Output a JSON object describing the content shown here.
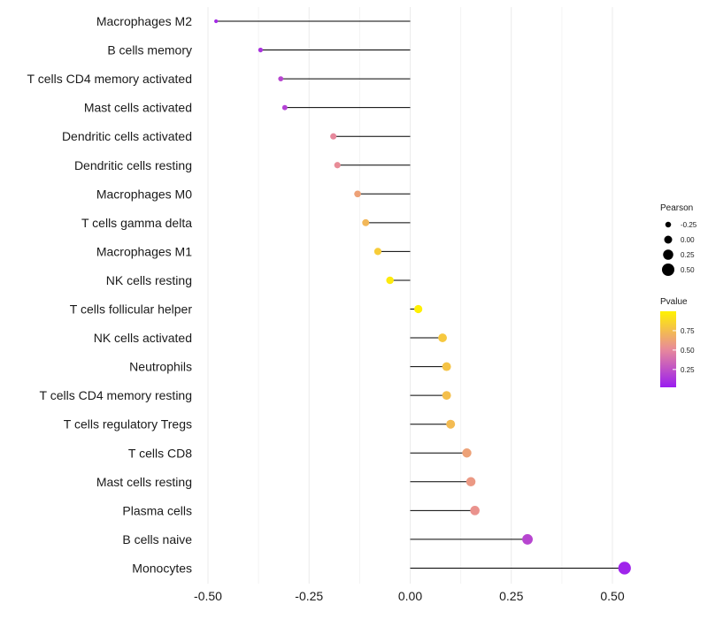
{
  "chart_data": {
    "type": "lollipop",
    "xlim": [
      -0.5,
      0.5
    ],
    "x_ticks": [
      -0.5,
      -0.25,
      0.0,
      0.25,
      0.5
    ],
    "x_tick_labels": [
      "-0.50",
      "-0.25",
      "0.00",
      "0.25",
      "0.50"
    ],
    "grid": "vertical",
    "categories": [
      "Macrophages M2",
      "B cells memory",
      "T cells CD4 memory activated",
      "Mast cells activated",
      "Dendritic cells activated",
      "Dendritic cells resting",
      "Macrophages M0",
      "T cells gamma delta",
      "Macrophages M1",
      "NK cells resting",
      "T cells follicular helper",
      "NK cells activated",
      "Neutrophils",
      "T cells CD4 memory resting",
      "T cells regulatory  Tregs",
      "T cells CD8",
      "Mast cells resting",
      "Plasma cells",
      "B cells naive",
      "Monocytes"
    ],
    "pearson": [
      -0.48,
      -0.37,
      -0.32,
      -0.31,
      -0.19,
      -0.18,
      -0.13,
      -0.11,
      -0.08,
      -0.05,
      0.02,
      0.08,
      0.09,
      0.09,
      0.1,
      0.14,
      0.15,
      0.16,
      0.29,
      0.53
    ],
    "pvalue": [
      0.08,
      0.12,
      0.2,
      0.18,
      0.5,
      0.52,
      0.62,
      0.72,
      0.82,
      0.96,
      0.99,
      0.8,
      0.78,
      0.76,
      0.74,
      0.62,
      0.58,
      0.55,
      0.2,
      0.05
    ],
    "legend_size": {
      "title": "Pearson",
      "labels": [
        "-0.25",
        "0.00",
        "0.25",
        "0.50"
      ],
      "values": [
        -0.25,
        0.0,
        0.25,
        0.5
      ]
    },
    "legend_color": {
      "title": "Pvalue",
      "labels": [
        "0.75",
        "0.50",
        "0.25"
      ],
      "values": [
        0.75,
        0.5,
        0.25
      ],
      "range": [
        0.02,
        1.0
      ],
      "low_color": "#9a1df0",
      "mid_color": "#e88a9a",
      "high_color": "#fff200"
    },
    "stem_color": "#000000",
    "grid_color": "#ebebeb"
  }
}
